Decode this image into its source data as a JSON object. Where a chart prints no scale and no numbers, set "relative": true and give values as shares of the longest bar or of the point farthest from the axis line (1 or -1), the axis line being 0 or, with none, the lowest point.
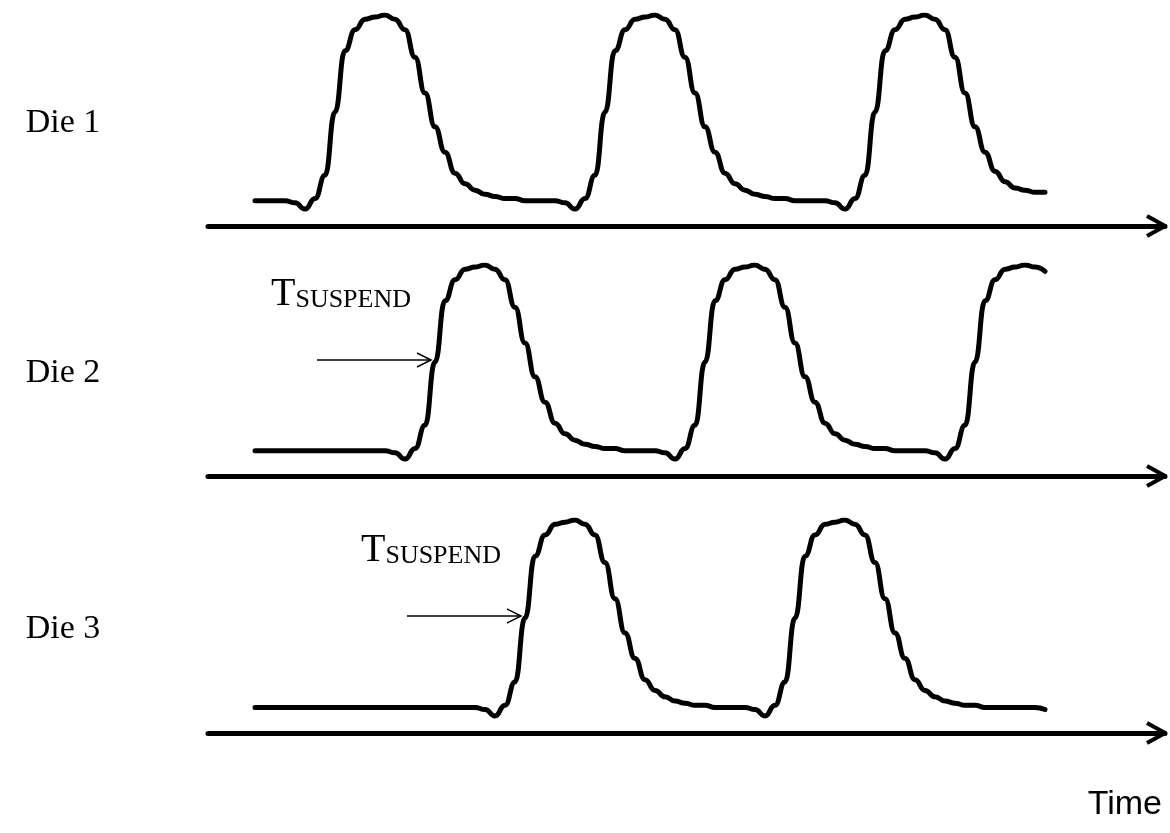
{
  "chart_data": [
    {
      "type": "line",
      "ylabel": "Die 1",
      "relative": true,
      "marker": "none",
      "line_style": "solid",
      "categories": [
        null,
        null,
        null,
        null,
        null,
        null,
        null,
        null,
        null,
        null,
        null,
        null,
        null,
        null,
        null,
        null,
        null,
        null,
        null,
        null,
        null,
        null,
        null,
        null,
        null,
        null,
        null,
        null,
        null,
        null,
        null,
        null,
        null,
        null,
        null,
        null,
        null,
        null,
        null,
        null,
        null,
        null,
        null,
        null,
        null,
        null,
        null,
        null,
        null,
        null,
        null,
        null,
        null,
        null,
        null,
        null,
        null,
        null,
        null,
        null,
        null,
        null,
        null,
        null,
        null,
        null,
        null,
        null,
        null,
        null,
        null,
        null,
        null,
        null,
        null,
        null,
        null,
        null,
        null,
        null
      ],
      "series": [
        {
          "color": "#000000",
          "values": [
            0.12,
            0.12,
            0.12,
            0.12,
            0.11,
            0.08,
            0.13,
            0.24,
            0.54,
            0.83,
            0.93,
            0.98,
            0.99,
            1.0,
            0.98,
            0.93,
            0.8,
            0.63,
            0.47,
            0.35,
            0.25,
            0.2,
            0.17,
            0.15,
            0.14,
            0.13,
            0.13,
            0.12,
            0.12,
            0.12,
            0.12,
            0.11,
            0.08,
            0.13,
            0.24,
            0.54,
            0.83,
            0.93,
            0.98,
            0.99,
            1.0,
            0.98,
            0.93,
            0.8,
            0.63,
            0.47,
            0.35,
            0.25,
            0.2,
            0.17,
            0.15,
            0.14,
            0.13,
            0.13,
            0.12,
            0.12,
            0.12,
            0.12,
            0.11,
            0.08,
            0.13,
            0.24,
            0.54,
            0.83,
            0.93,
            0.98,
            0.99,
            1.0,
            0.98,
            0.93,
            0.8,
            0.63,
            0.47,
            0.35,
            0.26,
            0.21,
            0.18,
            0.17,
            0.16,
            0.16
          ]
        }
      ]
    },
    {
      "type": "line",
      "ylabel": "Die 2",
      "relative": true,
      "marker": "none",
      "line_style": "solid",
      "annotations": [
        "T$_{SUSPEND}$"
      ],
      "categories": [
        null,
        null,
        null,
        null,
        null,
        null,
        null,
        null,
        null,
        null,
        null,
        null,
        null,
        null,
        null,
        null,
        null,
        null,
        null,
        null,
        null,
        null,
        null,
        null,
        null,
        null,
        null,
        null,
        null,
        null,
        null,
        null,
        null,
        null,
        null,
        null,
        null,
        null,
        null,
        null,
        null,
        null,
        null,
        null,
        null,
        null,
        null,
        null,
        null,
        null,
        null,
        null,
        null,
        null,
        null,
        null,
        null,
        null,
        null,
        null,
        null,
        null,
        null,
        null,
        null,
        null,
        null,
        null,
        null,
        null,
        null,
        null,
        null,
        null,
        null,
        null,
        null,
        null,
        null,
        null
      ],
      "series": [
        {
          "color": "#000000",
          "values": [
            0.12,
            0.12,
            0.12,
            0.12,
            0.12,
            0.12,
            0.12,
            0.12,
            0.12,
            0.12,
            0.12,
            0.12,
            0.12,
            0.12,
            0.11,
            0.08,
            0.13,
            0.24,
            0.54,
            0.83,
            0.93,
            0.98,
            0.99,
            1.0,
            0.98,
            0.93,
            0.8,
            0.63,
            0.47,
            0.35,
            0.25,
            0.2,
            0.17,
            0.15,
            0.14,
            0.13,
            0.13,
            0.12,
            0.12,
            0.12,
            0.12,
            0.11,
            0.08,
            0.13,
            0.24,
            0.54,
            0.83,
            0.93,
            0.98,
            0.99,
            1.0,
            0.98,
            0.93,
            0.8,
            0.63,
            0.47,
            0.35,
            0.25,
            0.2,
            0.17,
            0.15,
            0.14,
            0.13,
            0.13,
            0.12,
            0.12,
            0.12,
            0.12,
            0.11,
            0.08,
            0.13,
            0.24,
            0.54,
            0.83,
            0.93,
            0.98,
            0.99,
            1.0,
            0.99,
            0.97
          ]
        }
      ]
    },
    {
      "type": "line",
      "ylabel": "Die 3",
      "xlabel": "Time",
      "relative": true,
      "marker": "none",
      "line_style": "solid",
      "annotations": [
        "T$_{SUSPEND}$"
      ],
      "categories": [
        null,
        null,
        null,
        null,
        null,
        null,
        null,
        null,
        null,
        null,
        null,
        null,
        null,
        null,
        null,
        null,
        null,
        null,
        null,
        null,
        null,
        null,
        null,
        null,
        null,
        null,
        null,
        null,
        null,
        null,
        null,
        null,
        null,
        null,
        null,
        null,
        null,
        null,
        null,
        null,
        null,
        null,
        null,
        null,
        null,
        null,
        null,
        null,
        null,
        null,
        null,
        null,
        null,
        null,
        null,
        null,
        null,
        null,
        null,
        null,
        null,
        null,
        null,
        null,
        null,
        null,
        null,
        null,
        null,
        null,
        null,
        null,
        null,
        null,
        null,
        null,
        null,
        null,
        null,
        null
      ],
      "series": [
        {
          "color": "#000000",
          "values": [
            0.12,
            0.12,
            0.12,
            0.12,
            0.12,
            0.12,
            0.12,
            0.12,
            0.12,
            0.12,
            0.12,
            0.12,
            0.12,
            0.12,
            0.12,
            0.12,
            0.12,
            0.12,
            0.12,
            0.12,
            0.12,
            0.12,
            0.12,
            0.11,
            0.08,
            0.13,
            0.24,
            0.54,
            0.83,
            0.93,
            0.98,
            0.99,
            1.0,
            0.98,
            0.93,
            0.8,
            0.63,
            0.47,
            0.35,
            0.25,
            0.2,
            0.17,
            0.15,
            0.14,
            0.13,
            0.13,
            0.12,
            0.12,
            0.12,
            0.12,
            0.11,
            0.08,
            0.13,
            0.24,
            0.54,
            0.83,
            0.93,
            0.98,
            0.99,
            1.0,
            0.98,
            0.93,
            0.8,
            0.63,
            0.47,
            0.35,
            0.25,
            0.2,
            0.17,
            0.15,
            0.14,
            0.13,
            0.13,
            0.12,
            0.12,
            0.12,
            0.12,
            0.12,
            0.12,
            0.11
          ]
        }
      ]
    }
  ]
}
